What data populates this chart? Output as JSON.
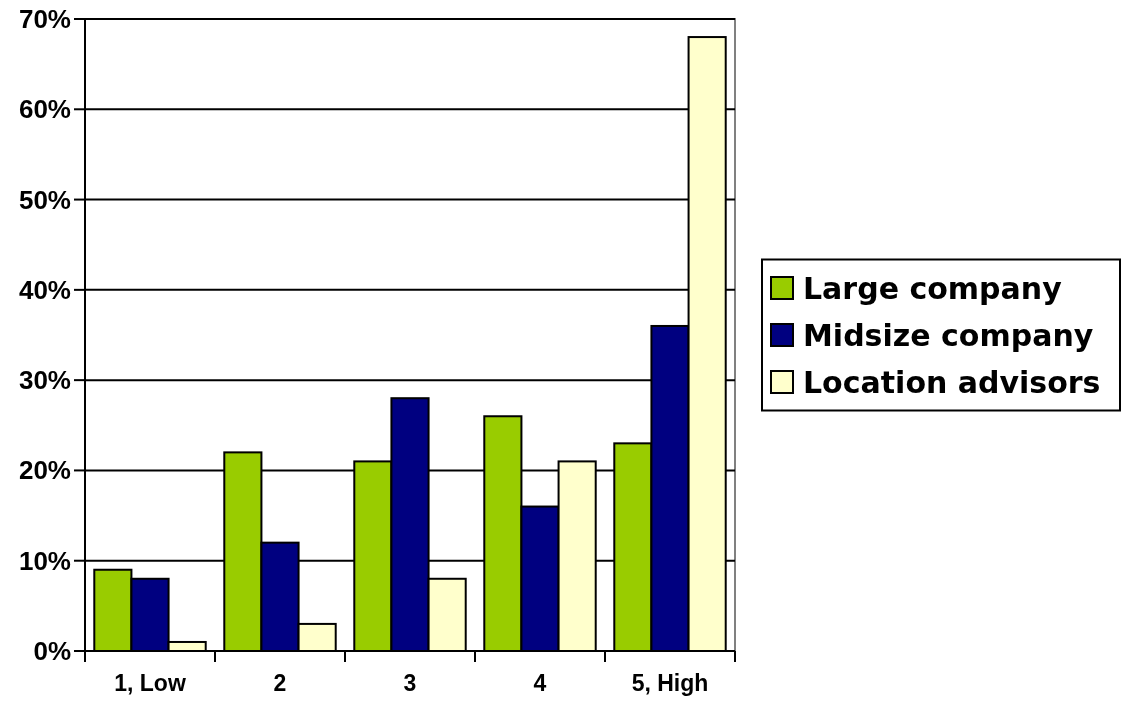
{
  "chart_data": {
    "type": "bar",
    "categories": [
      "1, Low",
      "2",
      "3",
      "4",
      "5, High"
    ],
    "series": [
      {
        "name": "Large company",
        "color": "#99cc00",
        "values": [
          9,
          22,
          21,
          26,
          23
        ]
      },
      {
        "name": "Midsize company",
        "color": "#000080",
        "values": [
          8,
          12,
          28,
          16,
          36
        ]
      },
      {
        "name": "Location advisors",
        "color": "#ffffcc",
        "values": [
          1,
          3,
          8,
          21,
          68
        ]
      }
    ],
    "ylim": [
      0,
      70
    ],
    "yticks": [
      {
        "value": 0,
        "label": "0%"
      },
      {
        "value": 10,
        "label": "10%"
      },
      {
        "value": 20,
        "label": "20%"
      },
      {
        "value": 30,
        "label": "30%"
      },
      {
        "value": 40,
        "label": "40%"
      },
      {
        "value": 50,
        "label": "50%"
      },
      {
        "value": 60,
        "label": "60%"
      },
      {
        "value": 70,
        "label": "70%"
      }
    ],
    "grid": "y",
    "legend": "right"
  }
}
